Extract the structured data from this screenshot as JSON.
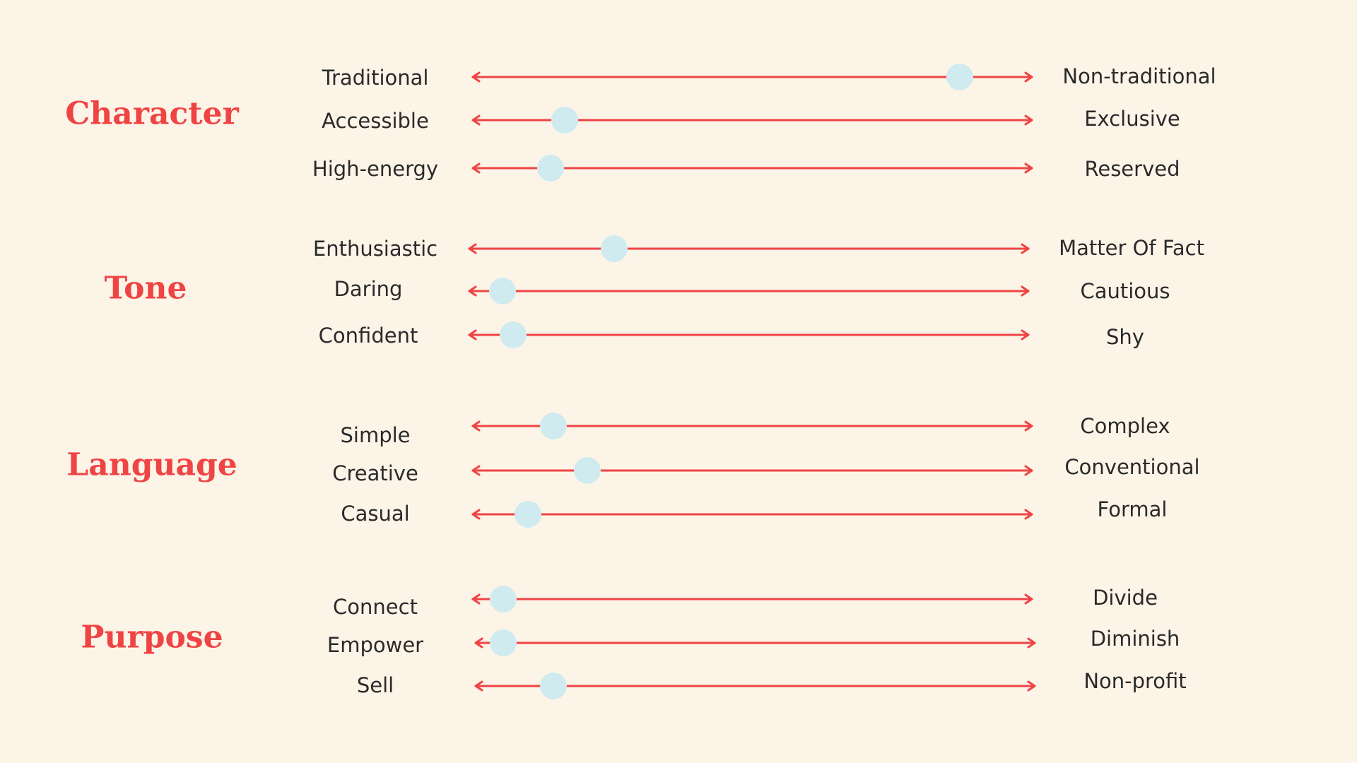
{
  "colors": {
    "background": "#fdf4e8",
    "accent": "#ef4444",
    "knob": "#cfebef",
    "text": "#2a2a2a"
  },
  "groups": [
    {
      "title": "Character",
      "rows": [
        {
          "left": "Traditional",
          "right": "Non-traditional",
          "value": 0.87
        },
        {
          "left": "Accessible",
          "right": "Exclusive",
          "value": 0.165
        },
        {
          "left": "High-energy",
          "right": "Reserved",
          "value": 0.14
        }
      ]
    },
    {
      "title": "Tone",
      "rows": [
        {
          "left": "Enthusiastic",
          "right": "Matter Of Fact",
          "value": 0.26
        },
        {
          "left": "Daring",
          "right": "Cautious",
          "value": 0.06
        },
        {
          "left": "Confident",
          "right": "Shy",
          "value": 0.08
        }
      ]
    },
    {
      "title": "Language",
      "rows": [
        {
          "left": "Simple",
          "right": "Complex",
          "value": 0.145
        },
        {
          "left": "Creative",
          "right": "Conventional",
          "value": 0.205
        },
        {
          "left": "Casual",
          "right": "Formal",
          "value": 0.1
        }
      ]
    },
    {
      "title": "Purpose",
      "rows": [
        {
          "left": "Connect",
          "right": "Divide",
          "value": 0.055
        },
        {
          "left": "Empower",
          "right": "Diminish",
          "value": 0.05
        },
        {
          "left": "Sell",
          "right": "Non-profit",
          "value": 0.14
        }
      ]
    }
  ]
}
